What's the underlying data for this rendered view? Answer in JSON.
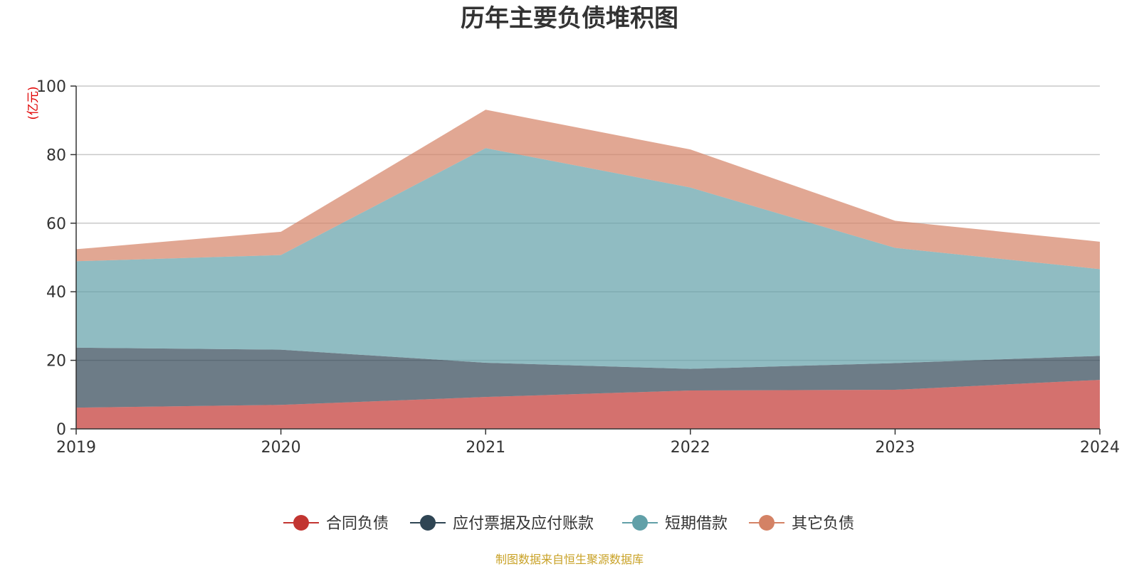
{
  "chart_data": {
    "type": "area",
    "stacked": true,
    "title": "历年主要负债堆积图",
    "y_unit": "(亿元)",
    "categories": [
      "2019",
      "2020",
      "2021",
      "2022",
      "2023",
      "2024"
    ],
    "ylim": [
      0,
      100
    ],
    "y_ticks": [
      "0",
      "20",
      "40",
      "60",
      "80",
      "100"
    ],
    "grid": true,
    "legend_position": "bottom",
    "series": [
      {
        "name": "合同负债",
        "color": "#c23531",
        "values": [
          6.2,
          7.0,
          9.3,
          11.2,
          11.4,
          14.3
        ]
      },
      {
        "name": "应付票据及应付账款",
        "color": "#2f4554",
        "values": [
          17.5,
          16.1,
          10.0,
          6.3,
          7.8,
          7.0
        ]
      },
      {
        "name": "短期借款",
        "color": "#61a0a8",
        "values": [
          25.2,
          27.6,
          62.6,
          52.9,
          33.6,
          25.3
        ]
      },
      {
        "name": "其它负债",
        "color": "#d48265",
        "values": [
          3.5,
          6.8,
          11.2,
          11.1,
          7.9,
          8.0
        ]
      }
    ],
    "source": "制图数据来自恒生聚源数据库"
  }
}
